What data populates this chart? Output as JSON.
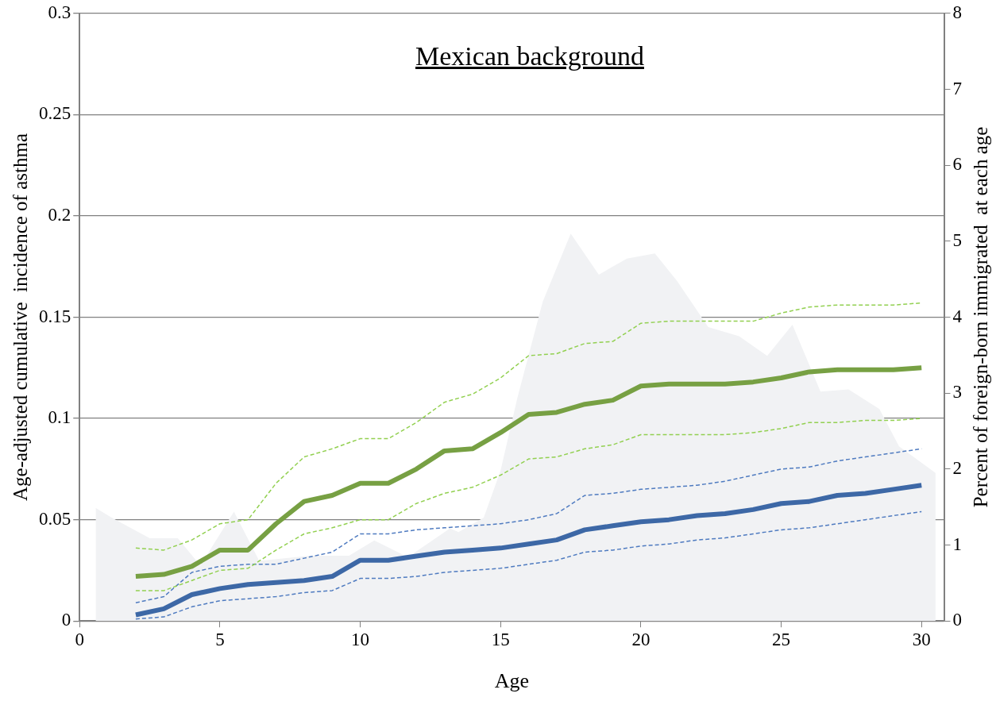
{
  "chart_data": {
    "type": "line",
    "title": "Mexican background",
    "xlabel": "Age",
    "ylabel": "Age-adjusted cumulative  incidence of asthma",
    "y2label": "Percent of foreign-born immigrated  at each age",
    "x": [
      2,
      3,
      4,
      5,
      6,
      7,
      8,
      9,
      10,
      11,
      12,
      13,
      14,
      15,
      16,
      17,
      18,
      19,
      20,
      21,
      22,
      23,
      24,
      25,
      26,
      27,
      28,
      29,
      30
    ],
    "series": [
      {
        "type": "area",
        "axis": "y2",
        "color": "#f1f2f4",
        "x": [
          0.57,
          1.14,
          2.5,
          3.5,
          4.3,
          5.5,
          6.4,
          8.2,
          9.6,
          10.5,
          11.7,
          13.2,
          13.5,
          14.4,
          15,
          15.6,
          16.5,
          17.5,
          18.5,
          19.5,
          20.5,
          21.3,
          22.4,
          23.5,
          24.5,
          25.4,
          26.4,
          27.4,
          28.5,
          29.2,
          30.5
        ],
        "values": [
          1.49,
          1.36,
          1.09,
          1.09,
          0.73,
          1.44,
          0.79,
          0.86,
          0.86,
          1.06,
          0.84,
          1.22,
          1.17,
          1.36,
          1.98,
          2.94,
          4.2,
          5.1,
          4.56,
          4.77,
          4.84,
          4.47,
          3.87,
          3.75,
          3.49,
          3.9,
          3.02,
          3.05,
          2.79,
          2.3,
          1.95
        ]
      },
      {
        "color": "#92d050",
        "line_style": "dashed",
        "values": [
          0.036,
          0.035,
          0.04,
          0.048,
          0.05,
          0.068,
          0.081,
          0.085,
          0.09,
          0.09,
          0.098,
          0.108,
          0.112,
          0.12,
          0.131,
          0.132,
          0.137,
          0.138,
          0.147,
          0.148,
          0.148,
          0.148,
          0.148,
          0.152,
          0.155,
          0.156,
          0.156,
          0.156,
          0.157
        ]
      },
      {
        "color": "#77a043",
        "line_style": "solid",
        "values": [
          0.022,
          0.023,
          0.027,
          0.035,
          0.035,
          0.048,
          0.059,
          0.062,
          0.068,
          0.068,
          0.075,
          0.084,
          0.085,
          0.093,
          0.102,
          0.103,
          0.107,
          0.109,
          0.116,
          0.117,
          0.117,
          0.117,
          0.118,
          0.12,
          0.123,
          0.124,
          0.124,
          0.124,
          0.125
        ]
      },
      {
        "color": "#92d050",
        "line_style": "dashed",
        "values": [
          0.015,
          0.015,
          0.02,
          0.025,
          0.026,
          0.035,
          0.043,
          0.046,
          0.05,
          0.05,
          0.058,
          0.063,
          0.066,
          0.072,
          0.08,
          0.081,
          0.085,
          0.087,
          0.092,
          0.092,
          0.092,
          0.092,
          0.093,
          0.095,
          0.098,
          0.098,
          0.099,
          0.099,
          0.1
        ]
      },
      {
        "color": "#4f7bc0",
        "line_style": "dashed",
        "values": [
          0.009,
          0.012,
          0.024,
          0.027,
          0.028,
          0.028,
          0.031,
          0.034,
          0.043,
          0.043,
          0.045,
          0.046,
          0.047,
          0.048,
          0.05,
          0.053,
          0.062,
          0.063,
          0.065,
          0.066,
          0.067,
          0.069,
          0.072,
          0.075,
          0.076,
          0.079,
          0.081,
          0.083,
          0.085
        ]
      },
      {
        "color": "#3d68a6",
        "line_style": "solid",
        "values": [
          0.003,
          0.006,
          0.013,
          0.016,
          0.018,
          0.019,
          0.02,
          0.022,
          0.03,
          0.03,
          0.032,
          0.034,
          0.035,
          0.036,
          0.038,
          0.04,
          0.045,
          0.047,
          0.049,
          0.05,
          0.052,
          0.053,
          0.055,
          0.058,
          0.059,
          0.062,
          0.063,
          0.065,
          0.067
        ]
      },
      {
        "color": "#4f7bc0",
        "line_style": "dashed",
        "values": [
          0.001,
          0.002,
          0.007,
          0.01,
          0.011,
          0.012,
          0.014,
          0.015,
          0.021,
          0.021,
          0.022,
          0.024,
          0.025,
          0.026,
          0.028,
          0.03,
          0.034,
          0.035,
          0.037,
          0.038,
          0.04,
          0.041,
          0.043,
          0.045,
          0.046,
          0.048,
          0.05,
          0.052,
          0.054
        ]
      }
    ],
    "xlim": [
      0,
      30.8
    ],
    "xticks": [
      0,
      5,
      10,
      15,
      20,
      25,
      30
    ],
    "ylim": [
      0,
      0.3
    ],
    "yticks": [
      0,
      0.05,
      0.1,
      0.15,
      0.2,
      0.25,
      0.3
    ],
    "y2lim": [
      0,
      8
    ],
    "y2ticks": [
      0,
      1,
      2,
      3,
      4,
      5,
      6,
      7,
      8
    ],
    "grid": "y",
    "legend": false,
    "marker": "none"
  }
}
